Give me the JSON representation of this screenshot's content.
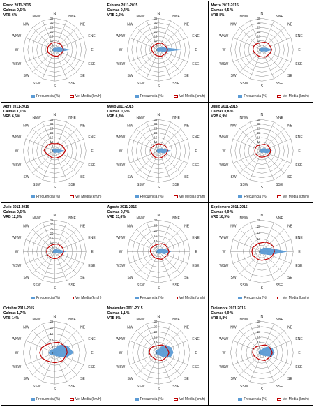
{
  "legend": {
    "freq": "Frecuencia (%)",
    "vel": "Vel Media (km/h)"
  },
  "colors": {
    "freq": "#5b9bd5",
    "vel": "#c00000",
    "grid": "#8c8c8c"
  },
  "chart_data": [
    {
      "type": "radar",
      "title": "Enero 2011-2015",
      "subtitle1": "Calmas 0,6 %",
      "subtitle2": "VRB 6%",
      "directions": [
        "N",
        "NNE",
        "NE",
        "ENE",
        "E",
        "ESE",
        "SE",
        "SSE",
        "S",
        "SSW",
        "SW",
        "WSW",
        "W",
        "WNW",
        "NW",
        "NNW"
      ],
      "rmax": 35,
      "ticks": [
        0,
        5,
        10,
        15,
        20,
        25,
        30,
        35
      ],
      "series": [
        {
          "name": "Frecuencia (%)",
          "values": [
            2,
            2,
            3,
            6,
            17,
            6,
            2,
            2,
            2,
            2,
            2,
            2,
            2,
            2,
            2,
            2
          ]
        },
        {
          "name": "Vel Media (km/h)",
          "values": [
            8,
            8,
            9,
            9,
            10,
            9,
            8,
            8,
            7,
            7,
            7,
            8,
            8,
            8,
            8,
            8
          ]
        }
      ]
    },
    {
      "type": "radar",
      "title": "Febrero 2011-2015",
      "subtitle1": "Calmas 0,4 %",
      "subtitle2": "VRB 2,5%",
      "directions": [
        "N",
        "NNE",
        "NE",
        "ENE",
        "E",
        "ESE",
        "SE",
        "SSE",
        "S",
        "SSW",
        "SW",
        "WSW",
        "W",
        "WNW",
        "NW",
        "NNW"
      ],
      "rmax": 35,
      "ticks": [
        0,
        5,
        10,
        15,
        20,
        25,
        30,
        35
      ],
      "series": [
        {
          "name": "Frecuencia (%)",
          "values": [
            2,
            2,
            3,
            6,
            26,
            6,
            2,
            2,
            2,
            2,
            2,
            2,
            2,
            2,
            2,
            2
          ]
        },
        {
          "name": "Vel Media (km/h)",
          "values": [
            7,
            8,
            8,
            9,
            10,
            9,
            8,
            8,
            7,
            7,
            7,
            7,
            8,
            8,
            7,
            7
          ]
        }
      ]
    },
    {
      "type": "radar",
      "title": "Marzo 2011-2015",
      "subtitle1": "Calmas 0,5 %",
      "subtitle2": "VRB 8%",
      "directions": [
        "N",
        "NNE",
        "NE",
        "ENE",
        "E",
        "ESE",
        "SE",
        "SSE",
        "S",
        "SSW",
        "SW",
        "WSW",
        "W",
        "WNW",
        "NW",
        "NNW"
      ],
      "rmax": 35,
      "ticks": [
        0,
        5,
        10,
        15,
        20,
        25,
        30,
        35
      ],
      "series": [
        {
          "name": "Frecuencia (%)",
          "values": [
            2,
            2,
            3,
            5,
            12,
            5,
            2,
            2,
            2,
            2,
            2,
            2,
            3,
            3,
            2,
            2
          ]
        },
        {
          "name": "Vel Media (km/h)",
          "values": [
            8,
            9,
            10,
            10,
            11,
            10,
            9,
            9,
            8,
            8,
            8,
            9,
            10,
            10,
            9,
            8
          ]
        }
      ]
    },
    {
      "type": "radar",
      "title": "Abril 2011-2015",
      "subtitle1": "Calmas 1,1 %",
      "subtitle2": "VRB 6,6%",
      "directions": [
        "N",
        "NNE",
        "NE",
        "ENE",
        "E",
        "ESE",
        "SE",
        "SSE",
        "S",
        "SSW",
        "SW",
        "WSW",
        "W",
        "WNW",
        "NW",
        "NNW"
      ],
      "rmax": 35,
      "ticks": [
        0,
        5,
        10,
        15,
        20,
        25,
        30,
        35
      ],
      "series": [
        {
          "name": "Frecuencia (%)",
          "values": [
            2,
            3,
            3,
            5,
            11,
            5,
            2,
            2,
            2,
            2,
            2,
            2,
            3,
            3,
            3,
            2
          ]
        },
        {
          "name": "Vel Media (km/h)",
          "values": [
            8,
            9,
            10,
            11,
            12,
            10,
            9,
            8,
            8,
            8,
            8,
            9,
            12,
            11,
            10,
            9
          ]
        }
      ]
    },
    {
      "type": "radar",
      "title": "Mayo 2011-2015",
      "subtitle1": "Calmas 0,6 %",
      "subtitle2": "VRB 6,8%",
      "directions": [
        "N",
        "NNE",
        "NE",
        "ENE",
        "E",
        "ESE",
        "SE",
        "SSE",
        "S",
        "SSW",
        "SW",
        "WSW",
        "W",
        "WNW",
        "NW",
        "NNW"
      ],
      "rmax": 35,
      "ticks": [
        0,
        5,
        10,
        15,
        20,
        25,
        30,
        35
      ],
      "series": [
        {
          "name": "Frecuencia (%)",
          "values": [
            2,
            3,
            4,
            6,
            14,
            6,
            2,
            2,
            2,
            2,
            2,
            2,
            2,
            2,
            2,
            2
          ]
        },
        {
          "name": "Vel Media (km/h)",
          "values": [
            8,
            8,
            9,
            10,
            10,
            9,
            8,
            8,
            8,
            8,
            8,
            8,
            9,
            9,
            8,
            8
          ]
        }
      ]
    },
    {
      "type": "radar",
      "title": "Junio 2011-2015",
      "subtitle1": "Calmas 0,8 %",
      "subtitle2": "VRB 6,9%",
      "directions": [
        "N",
        "NNE",
        "NE",
        "ENE",
        "E",
        "ESE",
        "SE",
        "SSE",
        "S",
        "SSW",
        "SW",
        "WSW",
        "W",
        "WNW",
        "NW",
        "NNW"
      ],
      "rmax": 35,
      "ticks": [
        0,
        5,
        10,
        15,
        20,
        25,
        30,
        35
      ],
      "series": [
        {
          "name": "Frecuencia (%)",
          "values": [
            2,
            3,
            4,
            6,
            12,
            6,
            2,
            2,
            2,
            2,
            2,
            2,
            2,
            2,
            2,
            2
          ]
        },
        {
          "name": "Vel Media (km/h)",
          "values": [
            7,
            8,
            9,
            9,
            10,
            9,
            8,
            7,
            7,
            7,
            7,
            8,
            8,
            8,
            8,
            7
          ]
        }
      ]
    },
    {
      "type": "radar",
      "title": "Julio 2011-2015",
      "subtitle1": "Calmas 0,6 %",
      "subtitle2": "VRB 12,3%",
      "directions": [
        "N",
        "NNE",
        "NE",
        "ENE",
        "E",
        "ESE",
        "SE",
        "SSE",
        "S",
        "SSW",
        "SW",
        "WSW",
        "W",
        "WNW",
        "NW",
        "NNW"
      ],
      "rmax": 35,
      "ticks": [
        0,
        5,
        10,
        15,
        20,
        25,
        30,
        35
      ],
      "series": [
        {
          "name": "Frecuencia (%)",
          "values": [
            2,
            3,
            3,
            5,
            13,
            5,
            2,
            2,
            2,
            2,
            2,
            2,
            2,
            2,
            2,
            2
          ]
        },
        {
          "name": "Vel Media (km/h)",
          "values": [
            8,
            9,
            9,
            10,
            10,
            9,
            8,
            8,
            8,
            8,
            8,
            9,
            9,
            9,
            8,
            8
          ]
        }
      ]
    },
    {
      "type": "radar",
      "title": "Agosto 2011-2015",
      "subtitle1": "Calmas 0,7 %",
      "subtitle2": "VRB 13,6%",
      "directions": [
        "N",
        "NNE",
        "NE",
        "ENE",
        "E",
        "ESE",
        "SE",
        "SSE",
        "S",
        "SSW",
        "SW",
        "WSW",
        "W",
        "WNW",
        "NW",
        "NNW"
      ],
      "rmax": 30,
      "ticks": [
        0,
        5,
        10,
        15,
        20,
        25,
        30
      ],
      "series": [
        {
          "name": "Frecuencia (%)",
          "values": [
            2,
            3,
            4,
            6,
            12,
            6,
            2,
            2,
            2,
            2,
            2,
            2,
            2,
            2,
            2,
            2
          ]
        },
        {
          "name": "Vel Media (km/h)",
          "values": [
            7,
            8,
            9,
            9,
            10,
            9,
            8,
            8,
            7,
            7,
            7,
            7,
            8,
            8,
            7,
            7
          ]
        }
      ]
    },
    {
      "type": "radar",
      "title": "Septiembre 2011-2015",
      "subtitle1": "Calmas 0,9 %",
      "subtitle2": "VRB 18,9%",
      "directions": [
        "N",
        "NNE",
        "NE",
        "ENE",
        "E",
        "ESE",
        "SE",
        "SSE",
        "S",
        "SSW",
        "SW",
        "WSW",
        "W",
        "WNW",
        "NW",
        "NNW"
      ],
      "rmax": 25,
      "ticks": [
        0,
        5,
        10,
        15,
        20,
        25
      ],
      "series": [
        {
          "name": "Frecuencia (%)",
          "values": [
            2,
            3,
            4,
            7,
            20,
            7,
            3,
            2,
            2,
            2,
            2,
            2,
            2,
            2,
            2,
            2
          ]
        },
        {
          "name": "Vel Media (km/h)",
          "values": [
            7,
            8,
            9,
            10,
            10,
            9,
            8,
            7,
            7,
            7,
            7,
            8,
            8,
            8,
            7,
            7
          ]
        }
      ]
    },
    {
      "type": "radar",
      "title": "Octubre 2011-2015",
      "subtitle1": "Calmas 1,7 %",
      "subtitle2": "VRB 14%",
      "directions": [
        "N",
        "NNE",
        "NE",
        "ENE",
        "E",
        "ESE",
        "SE",
        "SSE",
        "S",
        "SSW",
        "SW",
        "WSW",
        "W",
        "WNW",
        "NW",
        "NNW"
      ],
      "rmax": 25,
      "ticks": [
        0,
        5,
        10,
        15,
        20,
        25
      ],
      "series": [
        {
          "name": "Frecuencia (%)",
          "values": [
            3,
            6,
            9,
            12,
            15,
            10,
            4,
            3,
            2,
            2,
            3,
            4,
            5,
            4,
            3,
            3
          ]
        },
        {
          "name": "Vel Media (km/h)",
          "values": [
            8,
            9,
            9,
            10,
            10,
            9,
            9,
            8,
            8,
            8,
            9,
            11,
            12,
            11,
            9,
            8
          ]
        }
      ]
    },
    {
      "type": "radar",
      "title": "Noviembre 2011-2015",
      "subtitle1": "Calmas 1,1 %",
      "subtitle2": "VRB 8%",
      "directions": [
        "N",
        "NNE",
        "NE",
        "ENE",
        "E",
        "ESE",
        "SE",
        "SSE",
        "S",
        "SSW",
        "SW",
        "WSW",
        "W",
        "WNW",
        "NW",
        "NNW"
      ],
      "rmax": 30,
      "ticks": [
        0,
        5,
        10,
        15,
        20,
        25,
        30
      ],
      "series": [
        {
          "name": "Frecuencia (%)",
          "values": [
            3,
            6,
            10,
            13,
            14,
            12,
            5,
            3,
            2,
            2,
            2,
            3,
            3,
            3,
            3,
            3
          ]
        },
        {
          "name": "Vel Media (km/h)",
          "values": [
            7,
            8,
            9,
            9,
            10,
            9,
            8,
            8,
            7,
            7,
            7,
            8,
            9,
            9,
            8,
            7
          ]
        }
      ]
    },
    {
      "type": "radar",
      "title": "Diciembre 2011-2015",
      "subtitle1": "Calmas 0,9 %",
      "subtitle2": "VRB 8,8%",
      "directions": [
        "N",
        "NNE",
        "NE",
        "ENE",
        "E",
        "ESE",
        "SE",
        "SSE",
        "S",
        "SSW",
        "SW",
        "WSW",
        "W",
        "WNW",
        "NW",
        "NNW"
      ],
      "rmax": 30,
      "ticks": [
        0,
        5,
        10,
        15,
        20,
        25,
        30
      ],
      "series": [
        {
          "name": "Frecuencia (%)",
          "values": [
            3,
            5,
            8,
            11,
            12,
            10,
            4,
            3,
            2,
            2,
            2,
            3,
            3,
            3,
            3,
            3
          ]
        },
        {
          "name": "Vel Media (km/h)",
          "values": [
            7,
            8,
            9,
            9,
            10,
            9,
            8,
            8,
            7,
            7,
            7,
            8,
            9,
            9,
            8,
            7
          ]
        }
      ]
    }
  ]
}
